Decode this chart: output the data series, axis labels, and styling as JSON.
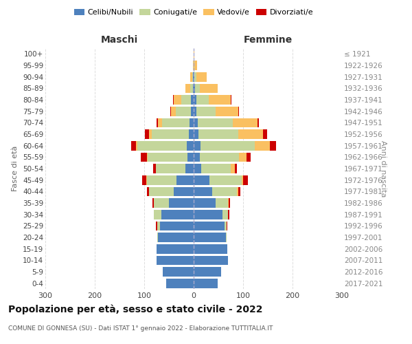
{
  "age_groups": [
    "0-4",
    "5-9",
    "10-14",
    "15-19",
    "20-24",
    "25-29",
    "30-34",
    "35-39",
    "40-44",
    "45-49",
    "50-54",
    "55-59",
    "60-64",
    "65-69",
    "70-74",
    "75-79",
    "80-84",
    "85-89",
    "90-94",
    "95-99",
    "100+"
  ],
  "birth_years": [
    "2017-2021",
    "2012-2016",
    "2007-2011",
    "2002-2006",
    "1997-2001",
    "1992-1996",
    "1987-1991",
    "1982-1986",
    "1977-1981",
    "1972-1976",
    "1967-1971",
    "1962-1966",
    "1957-1961",
    "1952-1956",
    "1947-1951",
    "1942-1946",
    "1937-1941",
    "1932-1936",
    "1927-1931",
    "1922-1926",
    "≤ 1921"
  ],
  "male_celibe": [
    55,
    62,
    75,
    75,
    72,
    68,
    65,
    50,
    40,
    35,
    16,
    13,
    14,
    10,
    9,
    6,
    5,
    2,
    1,
    0,
    0
  ],
  "male_coniugato": [
    0,
    0,
    0,
    0,
    1,
    5,
    15,
    30,
    50,
    60,
    60,
    80,
    100,
    75,
    55,
    30,
    20,
    5,
    2,
    0,
    0
  ],
  "male_vedovo": [
    0,
    0,
    0,
    0,
    0,
    1,
    0,
    0,
    0,
    1,
    1,
    2,
    3,
    5,
    8,
    10,
    15,
    10,
    4,
    1,
    0
  ],
  "male_divorziato": [
    0,
    0,
    0,
    0,
    1,
    2,
    1,
    3,
    5,
    8,
    5,
    12,
    10,
    8,
    3,
    1,
    1,
    0,
    0,
    0,
    0
  ],
  "female_celibe": [
    48,
    55,
    70,
    68,
    65,
    62,
    58,
    45,
    38,
    32,
    15,
    12,
    14,
    10,
    9,
    5,
    5,
    3,
    1,
    0,
    0
  ],
  "female_coniugato": [
    0,
    0,
    0,
    0,
    2,
    5,
    12,
    25,
    50,
    65,
    60,
    80,
    110,
    80,
    70,
    40,
    25,
    10,
    5,
    2,
    0
  ],
  "female_vedovo": [
    0,
    0,
    0,
    0,
    0,
    0,
    0,
    1,
    2,
    3,
    8,
    15,
    30,
    50,
    50,
    45,
    45,
    35,
    20,
    5,
    1
  ],
  "female_divorziato": [
    0,
    0,
    0,
    0,
    0,
    1,
    2,
    3,
    5,
    10,
    5,
    8,
    12,
    8,
    3,
    2,
    1,
    0,
    0,
    0,
    0
  ],
  "colors": {
    "celibe": "#4e81bd",
    "coniugato": "#c4d69b",
    "vedovo": "#fac061",
    "divorziato": "#cc0000"
  },
  "title": "Popolazione per età, sesso e stato civile - 2022",
  "subtitle": "COMUNE DI GONNESA (SU) - Dati ISTAT 1° gennaio 2022 - Elaborazione TUTTITALIA.IT",
  "xlabel_left": "Maschi",
  "xlabel_right": "Femmine",
  "ylabel_left": "Fasce di età",
  "ylabel_right": "Anni di nascita",
  "xlim": 300,
  "bg_color": "#ffffff",
  "grid_color": "#cccccc"
}
